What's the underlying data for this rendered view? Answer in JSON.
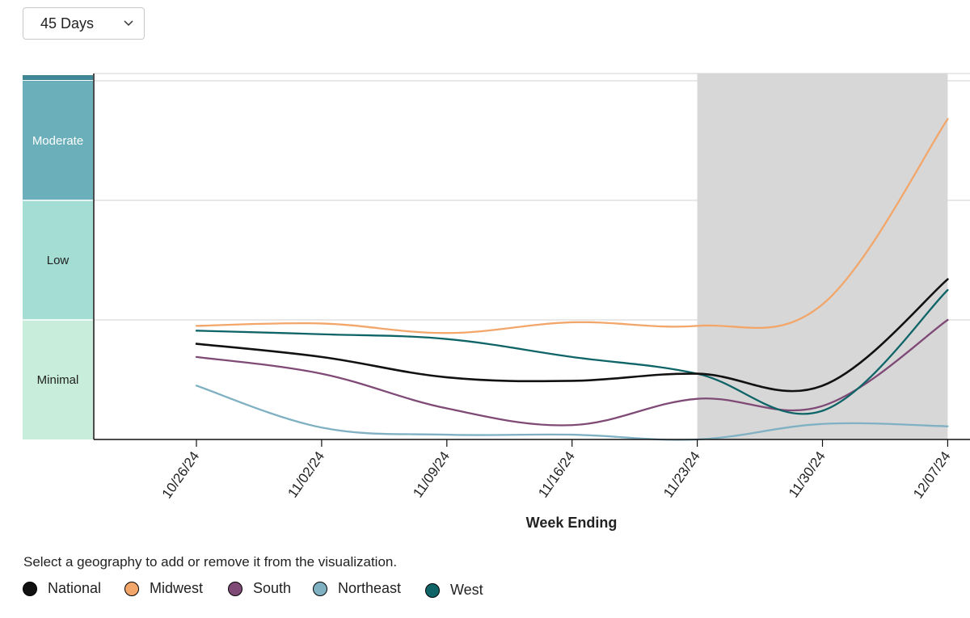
{
  "controls": {
    "range_select_value": "45 Days"
  },
  "legend": {
    "prompt": "Select a geography to add or remove it from the visualization.",
    "items": [
      {
        "label": "National",
        "color": "#111111"
      },
      {
        "label": "Midwest",
        "color": "#f2a66a"
      },
      {
        "label": "South",
        "color": "#7f4a76"
      },
      {
        "label": "Northeast",
        "color": "#7fb1c3"
      },
      {
        "label": "West",
        "color": "#0e6467"
      }
    ]
  },
  "chart_data": {
    "type": "line",
    "xlabel": "Week Ending",
    "ylabel": "",
    "x": [
      "10/26/24",
      "11/02/24",
      "11/09/24",
      "11/16/24",
      "11/23/24",
      "11/30/24",
      "12/07/24"
    ],
    "ylim": [
      0,
      3
    ],
    "levels": [
      {
        "label": "Minimal",
        "from": 0,
        "to": 1,
        "color": "#c8eedb",
        "text_color": "#222222"
      },
      {
        "label": "Low",
        "from": 1,
        "to": 2,
        "color": "#a3ddd3",
        "text_color": "#222222"
      },
      {
        "label": "Moderate",
        "from": 2,
        "to": 3,
        "color": "#6bafbb",
        "text_color": "#ffffff"
      }
    ],
    "shaded_region": {
      "from": "11/23/24",
      "to": "12/07/24",
      "color": "#d7d7d7"
    },
    "series": [
      {
        "name": "National",
        "color": "#111111",
        "values": [
          0.8,
          0.69,
          0.52,
          0.49,
          0.55,
          0.45,
          1.34
        ]
      },
      {
        "name": "Midwest",
        "color": "#f2a66a",
        "values": [
          0.95,
          0.97,
          0.89,
          0.98,
          0.95,
          1.13,
          2.68
        ]
      },
      {
        "name": "South",
        "color": "#7f4a76",
        "values": [
          0.69,
          0.55,
          0.26,
          0.12,
          0.34,
          0.28,
          1.0
        ]
      },
      {
        "name": "Northeast",
        "color": "#7fb1c3",
        "values": [
          0.45,
          0.1,
          0.04,
          0.04,
          0.0,
          0.13,
          0.11
        ]
      },
      {
        "name": "West",
        "color": "#0e6467",
        "values": [
          0.91,
          0.88,
          0.84,
          0.69,
          0.55,
          0.24,
          1.25
        ]
      }
    ]
  }
}
